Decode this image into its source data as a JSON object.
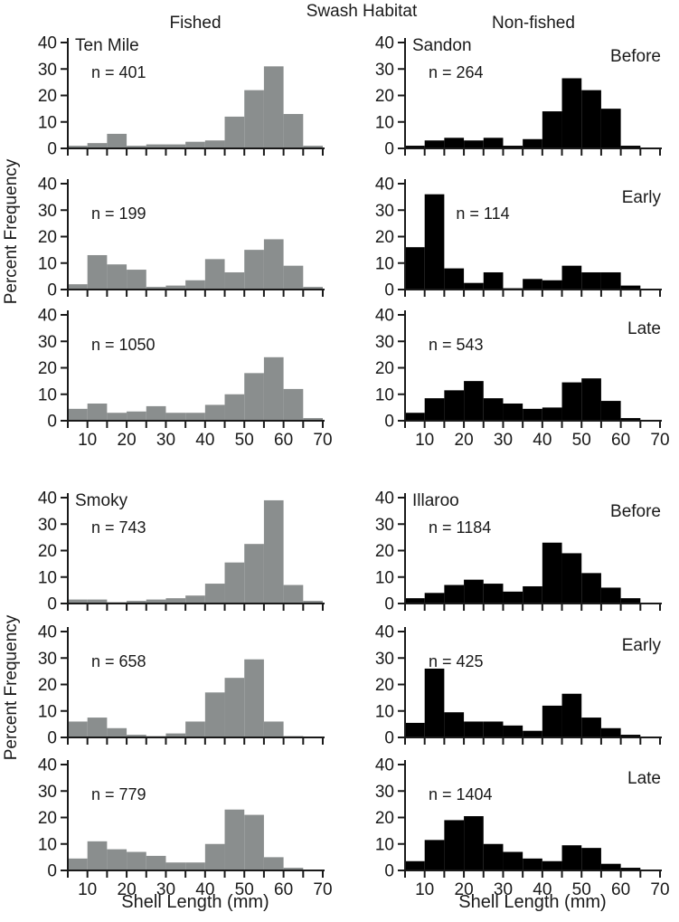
{
  "figure": {
    "title": "Swash Habitat",
    "col_headers": [
      "Fished",
      "Non-fished"
    ],
    "ylabel": "Percent Frequency",
    "xlabel": "Shell Length (mm)",
    "colors": {
      "fished": "#8a8e8e",
      "non_fished": "#000000",
      "axis": "#1a1a1a",
      "background": "#ffffff"
    }
  },
  "chart_data": {
    "type": "bar",
    "subtype": "histogram",
    "title": "Swash Habitat",
    "xlabel": "Shell Length (mm)",
    "ylabel": "Percent Frequency",
    "bin_width_mm": 5,
    "bin_starts_mm": [
      5,
      10,
      15,
      20,
      25,
      30,
      35,
      40,
      45,
      50,
      55,
      60,
      65
    ],
    "xlim": [
      5,
      70
    ],
    "ylim": [
      0,
      40
    ],
    "x_ticks": [
      10,
      20,
      30,
      40,
      50,
      60,
      70
    ],
    "y_ticks": [
      0,
      10,
      20,
      30,
      40
    ],
    "grid": false,
    "legend": "none",
    "panels": [
      {
        "id": "ten-mile-before",
        "row": 0,
        "col": 0,
        "column_group": "Fished",
        "site_label": "Ten Mile",
        "phase_label": "",
        "n_label": "n = 401",
        "n": 401,
        "color_key": "fished",
        "show_x_tick_labels": false,
        "n_x_mm": 11,
        "values": [
          1,
          2,
          5.5,
          1,
          1.5,
          1.5,
          2.5,
          3,
          12,
          22,
          31,
          13,
          1
        ]
      },
      {
        "id": "sandon-before",
        "row": 0,
        "col": 1,
        "column_group": "Non-fished",
        "site_label": "Sandon",
        "phase_label": "Before",
        "n_label": "n = 264",
        "n": 264,
        "color_key": "non_fished",
        "show_x_tick_labels": false,
        "n_x_mm": 11,
        "values": [
          1,
          3,
          4,
          3,
          4,
          1,
          3.5,
          14,
          26.5,
          22,
          15,
          1,
          0
        ]
      },
      {
        "id": "ten-mile-early",
        "row": 1,
        "col": 0,
        "column_group": "Fished",
        "site_label": "",
        "phase_label": "",
        "n_label": "n = 199",
        "n": 199,
        "color_key": "fished",
        "show_x_tick_labels": false,
        "n_x_mm": 11,
        "values": [
          2,
          13,
          9.5,
          7.5,
          1,
          1.5,
          3.5,
          11.5,
          6.5,
          15,
          19,
          9,
          1
        ]
      },
      {
        "id": "sandon-early",
        "row": 1,
        "col": 1,
        "column_group": "Non-fished",
        "site_label": "",
        "phase_label": "Early",
        "n_label": "n = 114",
        "n": 114,
        "color_key": "non_fished",
        "show_x_tick_labels": false,
        "n_x_mm": 18,
        "values": [
          16,
          36,
          8,
          2.5,
          6.5,
          0.5,
          4,
          3.5,
          9,
          6.5,
          6.5,
          1.5,
          0
        ]
      },
      {
        "id": "ten-mile-late",
        "row": 2,
        "col": 0,
        "column_group": "Fished",
        "site_label": "",
        "phase_label": "",
        "n_label": "n = 1050",
        "n": 1050,
        "color_key": "fished",
        "show_x_tick_labels": true,
        "n_x_mm": 11,
        "values": [
          4.5,
          6.5,
          3,
          3.5,
          5.5,
          3,
          3,
          6,
          10,
          18,
          24,
          12,
          1
        ]
      },
      {
        "id": "sandon-late",
        "row": 2,
        "col": 1,
        "column_group": "Non-fished",
        "site_label": "",
        "phase_label": "Late",
        "n_label": "n = 543",
        "n": 543,
        "color_key": "non_fished",
        "show_x_tick_labels": true,
        "n_x_mm": 11,
        "values": [
          3,
          8.5,
          11.5,
          15,
          8.5,
          6.5,
          4.5,
          5,
          14.5,
          16,
          7.5,
          1,
          0
        ]
      },
      {
        "id": "smoky-before",
        "row": 3,
        "col": 0,
        "column_group": "Fished",
        "site_label": "Smoky",
        "phase_label": "",
        "n_label": "n = 743",
        "n": 743,
        "color_key": "fished",
        "show_x_tick_labels": false,
        "n_x_mm": 11,
        "values": [
          1.5,
          1.5,
          0.5,
          1,
          1.5,
          2,
          3,
          7.5,
          15.5,
          22.5,
          39,
          7,
          1
        ]
      },
      {
        "id": "illaroo-before",
        "row": 3,
        "col": 1,
        "column_group": "Non-fished",
        "site_label": "Illaroo",
        "phase_label": "Before",
        "n_label": "n = 1184",
        "n": 1184,
        "color_key": "non_fished",
        "show_x_tick_labels": false,
        "n_x_mm": 11,
        "values": [
          2,
          4,
          7,
          9,
          7.5,
          4.5,
          6.5,
          23,
          19,
          11.5,
          6,
          2,
          0
        ]
      },
      {
        "id": "smoky-early",
        "row": 4,
        "col": 0,
        "column_group": "Fished",
        "site_label": "",
        "phase_label": "",
        "n_label": "n = 658",
        "n": 658,
        "color_key": "fished",
        "show_x_tick_labels": false,
        "n_x_mm": 11,
        "values": [
          6,
          7.5,
          3.5,
          1,
          0.5,
          1.5,
          6,
          17,
          22.5,
          29.5,
          6,
          0.5,
          0
        ]
      },
      {
        "id": "illaroo-early",
        "row": 4,
        "col": 1,
        "column_group": "Non-fished",
        "site_label": "",
        "phase_label": "Early",
        "n_label": "n = 425",
        "n": 425,
        "color_key": "non_fished",
        "show_x_tick_labels": false,
        "n_x_mm": 11,
        "values": [
          5.5,
          26,
          9.5,
          6,
          6,
          4.5,
          2.5,
          12,
          16.5,
          7.5,
          3.5,
          1,
          0
        ]
      },
      {
        "id": "smoky-late",
        "row": 5,
        "col": 0,
        "column_group": "Fished",
        "site_label": "",
        "phase_label": "",
        "n_label": "n = 779",
        "n": 779,
        "color_key": "fished",
        "show_x_tick_labels": true,
        "n_x_mm": 11,
        "values": [
          4.5,
          11,
          8,
          7,
          5.5,
          3,
          3,
          10,
          23,
          21,
          5,
          1,
          0
        ]
      },
      {
        "id": "illaroo-late",
        "row": 5,
        "col": 1,
        "column_group": "Non-fished",
        "site_label": "",
        "phase_label": "Late",
        "n_label": "n = 1404",
        "n": 1404,
        "color_key": "non_fished",
        "show_x_tick_labels": true,
        "n_x_mm": 11,
        "values": [
          3.5,
          11.5,
          19,
          20.5,
          10,
          7,
          4.5,
          3.5,
          9.5,
          8.5,
          2.5,
          1,
          0
        ]
      }
    ]
  }
}
